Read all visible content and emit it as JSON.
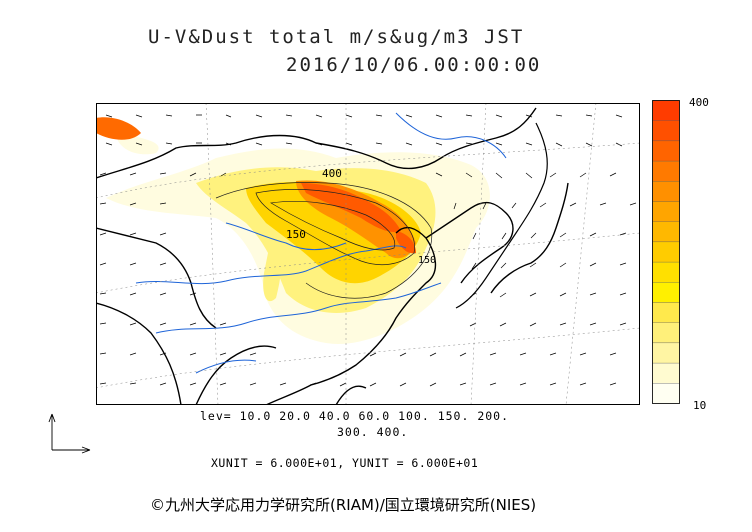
{
  "title": "U-V&Dust total m/s&ug/m3 JST",
  "datetime": "2016/10/06.00:00:00",
  "colorbar": {
    "max_label": "400",
    "min_label": "10",
    "colors": [
      "#fffff2",
      "#fffbd0",
      "#fff5a3",
      "#fff07a",
      "#ffe94c",
      "#fff000",
      "#ffe000",
      "#ffcc00",
      "#ffb800",
      "#ffa500",
      "#ff9000",
      "#ff7a00",
      "#ff6400",
      "#ff5000",
      "#ff3c00"
    ]
  },
  "contour_labels": [
    "400",
    "150",
    "150"
  ],
  "levels_line1": "lev= 10.0 20.0 40.0 60.0 100. 150. 200.",
  "levels_line2": "300. 400.",
  "units_line": "XUNIT = 6.000E+01, YUNIT = 6.000E+01",
  "credit": "©九州大学応用力学研究所(RIAM)/国立環境研究所(NIES)",
  "colors": {
    "land_border": "#000000",
    "river": "#1e64d8",
    "dust_peak": "#ff5a00"
  }
}
